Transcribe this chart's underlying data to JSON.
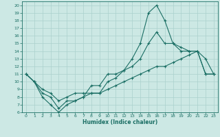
{
  "xlabel": "Humidex (Indice chaleur)",
  "bg_color": "#cce8e4",
  "grid_color": "#aad0cc",
  "line_color": "#1a6e64",
  "xlim": [
    -0.5,
    23.5
  ],
  "ylim": [
    6,
    20.5
  ],
  "yticks": [
    6,
    7,
    8,
    9,
    10,
    11,
    12,
    13,
    14,
    15,
    16,
    17,
    18,
    19,
    20
  ],
  "xticks": [
    0,
    1,
    2,
    3,
    4,
    5,
    6,
    7,
    8,
    9,
    10,
    11,
    12,
    13,
    14,
    15,
    16,
    17,
    18,
    19,
    20,
    21,
    22,
    23
  ],
  "line1_x": [
    0,
    1,
    2,
    3,
    4,
    5,
    6,
    7,
    8,
    9,
    10,
    11,
    12,
    13,
    14,
    15,
    16,
    17,
    18,
    19,
    20,
    21,
    22,
    23
  ],
  "line1_y": [
    11,
    10,
    8,
    7,
    6,
    7,
    7.5,
    8,
    9.5,
    9.5,
    11,
    11,
    11.5,
    13,
    15,
    19,
    20,
    18,
    15,
    14,
    14,
    14,
    11,
    11
  ],
  "line2_x": [
    0,
    1,
    2,
    3,
    4,
    5,
    6,
    7,
    8,
    9,
    10,
    11,
    12,
    13,
    14,
    15,
    16,
    17,
    18,
    19,
    20,
    21,
    22,
    23
  ],
  "line2_y": [
    11,
    10,
    8.5,
    8,
    6.5,
    7.5,
    7.5,
    8,
    8.5,
    8.5,
    10,
    10.5,
    11.5,
    12,
    13,
    15,
    16.5,
    15,
    15,
    14.5,
    14,
    14,
    13,
    11
  ],
  "line3_x": [
    0,
    1,
    2,
    3,
    4,
    5,
    6,
    7,
    8,
    9,
    10,
    11,
    12,
    13,
    14,
    15,
    16,
    17,
    18,
    19,
    20,
    21,
    22,
    23
  ],
  "line3_y": [
    11,
    10,
    9,
    8.5,
    7.5,
    8,
    8.5,
    8.5,
    8.5,
    8.5,
    9,
    9.5,
    10,
    10.5,
    11,
    11.5,
    12,
    12,
    12.5,
    13,
    13.5,
    14,
    11,
    11
  ]
}
